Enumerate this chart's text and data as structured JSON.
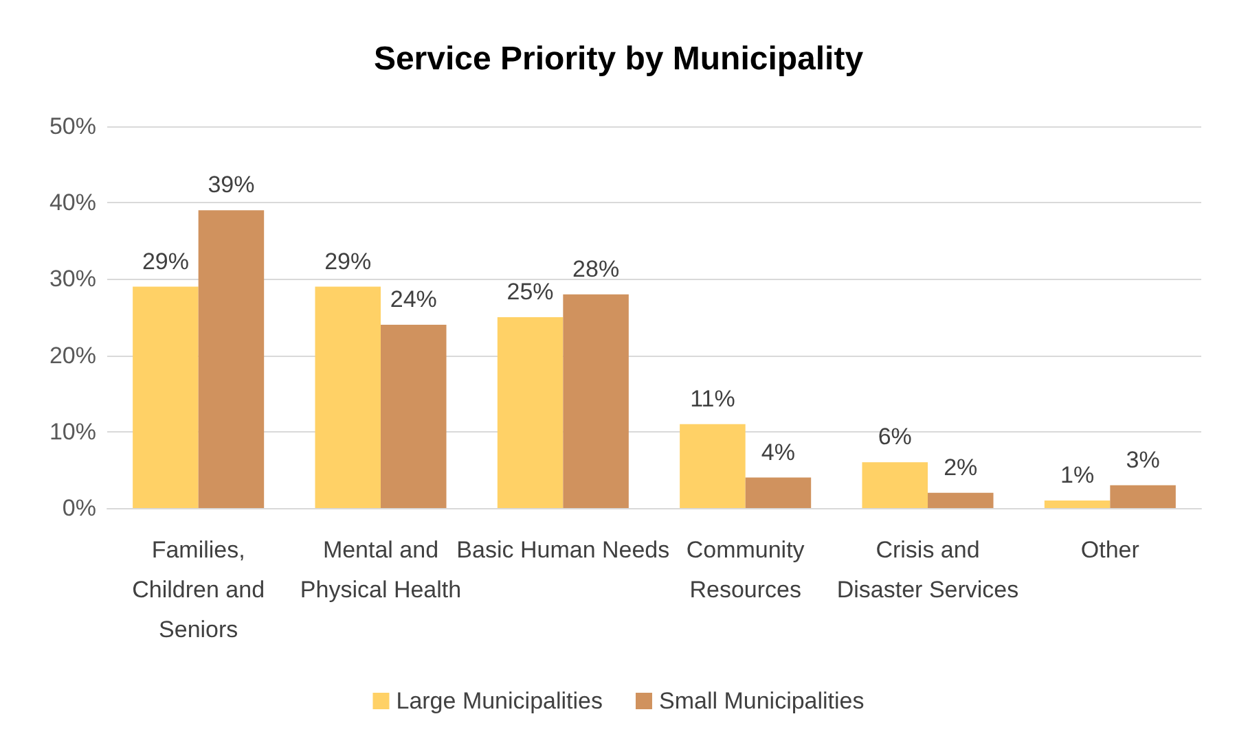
{
  "chart_data": {
    "type": "bar",
    "title": "Service Priority by Municipality",
    "categories": [
      "Families, Children and Seniors",
      "Mental and Physical Health",
      "Basic Human Needs",
      "Community Resources",
      "Crisis and Disaster Services",
      "Other"
    ],
    "series": [
      {
        "name": "Large Municipalities",
        "color": "#ffd166",
        "values": [
          29,
          29,
          25,
          11,
          6,
          1
        ],
        "value_labels": [
          "29%",
          "29%",
          "25%",
          "11%",
          "6%",
          "1%"
        ]
      },
      {
        "name": "Small Municipalities",
        "color": "#d0925e",
        "values": [
          39,
          24,
          28,
          4,
          2,
          3
        ],
        "value_labels": [
          "39%",
          "24%",
          "28%",
          "4%",
          "2%",
          "3%"
        ]
      }
    ],
    "ylim": [
      0,
      50
    ],
    "yticks": [
      {
        "value": 0,
        "label": "0%"
      },
      {
        "value": 10,
        "label": "10%"
      },
      {
        "value": 20,
        "label": "20%"
      },
      {
        "value": 30,
        "label": "30%"
      },
      {
        "value": 40,
        "label": "40%"
      },
      {
        "value": 50,
        "label": "50%"
      }
    ],
    "grid": "y",
    "legend": "bottom"
  }
}
